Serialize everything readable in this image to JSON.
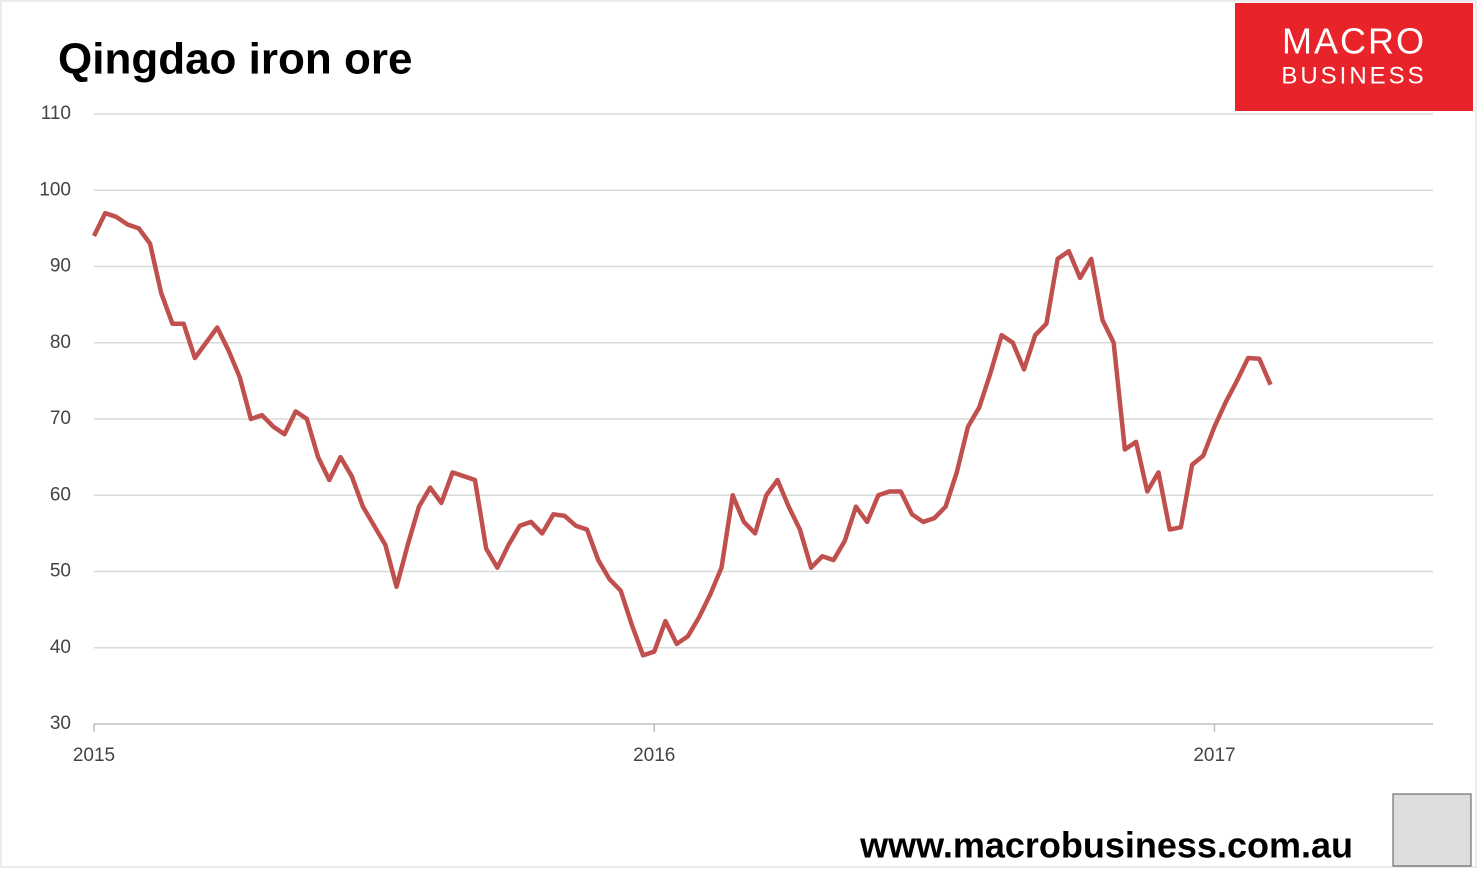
{
  "chart_data": {
    "type": "line",
    "title": "Qingdao iron ore",
    "x": [
      2015.0,
      2015.02,
      2015.04,
      2015.06,
      2015.08,
      2015.1,
      2015.12,
      2015.14,
      2015.16,
      2015.18,
      2015.2,
      2015.22,
      2015.24,
      2015.26,
      2015.28,
      2015.3,
      2015.32,
      2015.34,
      2015.36,
      2015.38,
      2015.4,
      2015.42,
      2015.44,
      2015.46,
      2015.48,
      2015.5,
      2015.52,
      2015.54,
      2015.56,
      2015.58,
      2015.6,
      2015.62,
      2015.64,
      2015.66,
      2015.68,
      2015.7,
      2015.72,
      2015.74,
      2015.76,
      2015.78,
      2015.8,
      2015.82,
      2015.84,
      2015.86,
      2015.88,
      2015.9,
      2015.92,
      2015.94,
      2015.96,
      2015.98,
      2016.0,
      2016.02,
      2016.04,
      2016.06,
      2016.08,
      2016.1,
      2016.12,
      2016.14,
      2016.16,
      2016.18,
      2016.2,
      2016.22,
      2016.24,
      2016.26,
      2016.28,
      2016.3,
      2016.32,
      2016.34,
      2016.36,
      2016.38,
      2016.4,
      2016.42,
      2016.44,
      2016.46,
      2016.48,
      2016.5,
      2016.52,
      2016.54,
      2016.56,
      2016.58,
      2016.6,
      2016.62,
      2016.64,
      2016.66,
      2016.68,
      2016.7,
      2016.72,
      2016.74,
      2016.76,
      2016.78,
      2016.8,
      2016.82,
      2016.84,
      2016.86,
      2016.88,
      2016.9,
      2016.92,
      2016.94,
      2016.96,
      2016.98,
      2017.0,
      2017.02,
      2017.04,
      2017.06,
      2017.08,
      2017.1
    ],
    "series": [
      {
        "name": "Qingdao iron ore",
        "color": "#c0504d",
        "values": [
          94,
          97,
          96.5,
          95.5,
          95,
          93,
          86.5,
          82.5,
          82.5,
          78,
          80,
          82,
          79,
          75.5,
          70,
          70.5,
          69,
          68,
          71,
          70,
          65,
          62,
          65,
          62.5,
          58.5,
          56,
          53.5,
          48,
          53.5,
          58.5,
          61,
          59,
          63,
          62.5,
          62,
          53,
          50.5,
          53.5,
          56,
          56.5,
          55,
          57.5,
          57.3,
          56,
          55.5,
          51.5,
          49,
          47.5,
          43,
          39,
          39.5,
          43.5,
          40.5,
          41.5,
          44,
          47,
          50.5,
          60,
          56.5,
          55,
          60,
          62,
          58.5,
          55.5,
          50.5,
          52,
          51.5,
          54,
          58.5,
          56.5,
          60,
          60.5,
          60.5,
          57.5,
          56.5,
          57,
          58.5,
          63,
          69,
          71.5,
          76,
          81,
          80,
          76.5,
          81,
          82.5,
          91,
          92,
          88.5,
          91,
          83,
          80,
          66,
          67,
          60.5,
          63,
          55.5,
          55.8,
          64,
          65.2,
          69,
          72.2,
          75,
          78,
          77.9,
          74.5
        ]
      }
    ],
    "xlim": [
      2015,
      2017.39
    ],
    "xticks": [
      2015,
      2016,
      2017
    ],
    "ylim": [
      30,
      110
    ],
    "yticks": [
      30,
      40,
      50,
      60,
      70,
      80,
      90,
      100,
      110
    ],
    "grid": true
  },
  "logo": [
    "MACRO",
    "BUSINESS"
  ],
  "footer": "www.macrobusiness.com.au"
}
